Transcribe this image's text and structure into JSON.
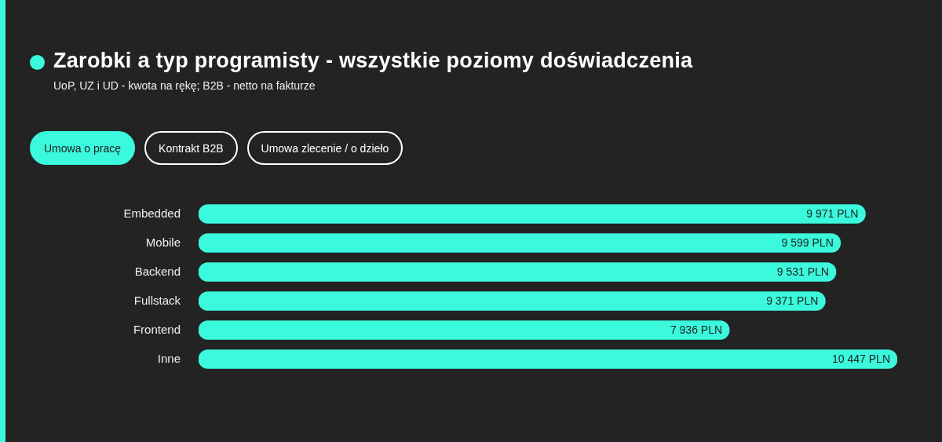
{
  "chart_data": {
    "type": "bar",
    "orientation": "horizontal",
    "title": "Zarobki a typ programisty - wszystkie poziomy doświadczenia",
    "subtitle": "UoP, UZ i UD - kwota na rękę; B2B - netto na fakturze",
    "annotations": [
      "Umowa o pracę",
      "Kontrakt B2B",
      "Umowa zlecenie / o dzieło"
    ],
    "categories": [
      "Embedded",
      "Mobile",
      "Backend",
      "Fullstack",
      "Frontend",
      "Inne"
    ],
    "values": [
      9971,
      9599,
      9531,
      9371,
      7936,
      10447
    ],
    "value_labels": [
      "9 971 PLN",
      "9 599 PLN",
      "9 531 PLN",
      "9 371 PLN",
      "7 936 PLN",
      "10 447 PLN"
    ],
    "color": "#3bf9dc",
    "grid": false,
    "legend": false,
    "tick_labels": "y"
  }
}
